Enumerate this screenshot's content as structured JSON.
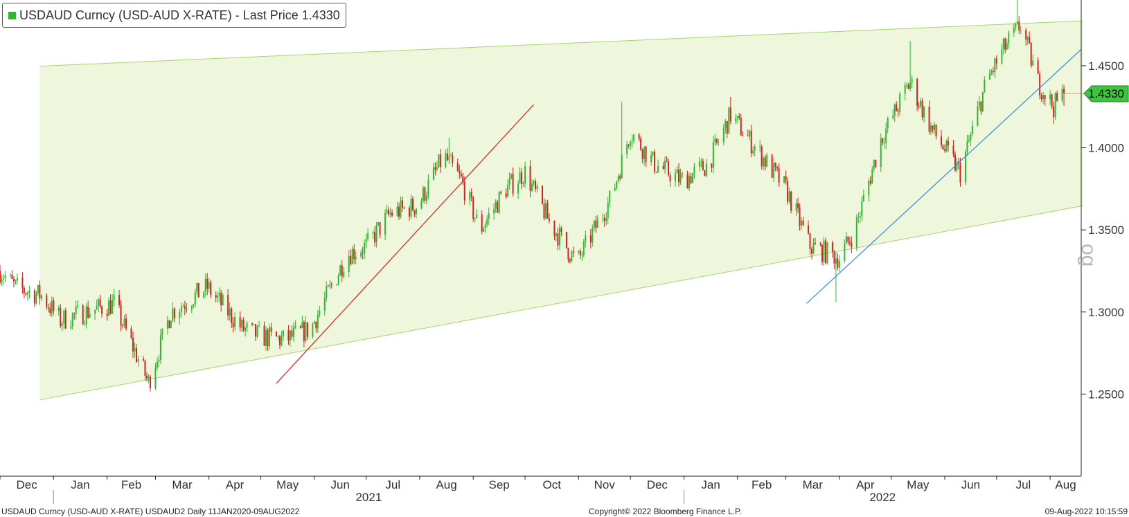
{
  "legend": {
    "label": "USDAUD Curncy (USD-AUD X-RATE) - Last Price 1.4330",
    "swatch_color": "#2db82d"
  },
  "last_price_tag": {
    "value": "1.4330",
    "color": "#3cc63c"
  },
  "watermark": "og",
  "footer": {
    "left": "USDAUD Curncy (USD-AUD X-RATE) USDAUD2  Daily 11JAN2020-09AUG2022",
    "center": "Copyright© 2022 Bloomberg Finance L.P.",
    "right": "09-Aug-2022 10:15:59"
  },
  "chart_data": {
    "type": "candlestick",
    "title": "USDAUD Curncy (USD-AUD X-RATE) - Last Price 1.4330",
    "y_ticks": [
      "1.2500",
      "1.3000",
      "1.3500",
      "1.4000",
      "1.4500"
    ],
    "y_tick_values": [
      1.25,
      1.3,
      1.35,
      1.4,
      1.45
    ],
    "ylim": [
      1.2,
      1.49
    ],
    "y_axis_side": "right",
    "x_month_labels": [
      "Dec",
      "Jan",
      "Feb",
      "Mar",
      "Apr",
      "May",
      "Jun",
      "Jul",
      "Aug",
      "Sep",
      "Oct",
      "Nov",
      "Dec",
      "Jan",
      "Feb",
      "Mar",
      "Apr",
      "May",
      "Jun",
      "Jul",
      "Aug"
    ],
    "x_year_labels": [
      "2021",
      "2022"
    ],
    "x_range": [
      "2020-12-01",
      "2022-08-19"
    ],
    "last_price": 1.433,
    "up_color": "#2db82d",
    "down_color": "#d42020",
    "price_path": [
      {
        "date": "2020-12-01",
        "value": 1.325
      },
      {
        "date": "2020-12-10",
        "value": 1.315
      },
      {
        "date": "2020-12-25",
        "value": 1.31
      },
      {
        "date": "2021-01-05",
        "value": 1.295
      },
      {
        "date": "2021-01-20",
        "value": 1.3
      },
      {
        "date": "2021-02-05",
        "value": 1.305
      },
      {
        "date": "2021-02-25",
        "value": 1.257
      },
      {
        "date": "2021-03-10",
        "value": 1.3
      },
      {
        "date": "2021-03-31",
        "value": 1.315
      },
      {
        "date": "2021-04-20",
        "value": 1.29
      },
      {
        "date": "2021-05-01",
        "value": 1.285
      },
      {
        "date": "2021-05-15",
        "value": 1.283
      },
      {
        "date": "2021-05-30",
        "value": 1.29
      },
      {
        "date": "2021-06-20",
        "value": 1.335
      },
      {
        "date": "2021-07-01",
        "value": 1.34
      },
      {
        "date": "2021-07-15",
        "value": 1.36
      },
      {
        "date": "2021-07-31",
        "value": 1.365
      },
      {
        "date": "2021-08-15",
        "value": 1.395
      },
      {
        "date": "2021-08-25",
        "value": 1.38
      },
      {
        "date": "2021-09-05",
        "value": 1.35
      },
      {
        "date": "2021-09-20",
        "value": 1.375
      },
      {
        "date": "2021-10-01",
        "value": 1.385
      },
      {
        "date": "2021-10-15",
        "value": 1.355
      },
      {
        "date": "2021-10-31",
        "value": 1.33
      },
      {
        "date": "2021-11-20",
        "value": 1.37
      },
      {
        "date": "2021-12-01",
        "value": 1.41
      },
      {
        "date": "2021-12-15",
        "value": 1.39
      },
      {
        "date": "2021-12-31",
        "value": 1.38
      },
      {
        "date": "2022-01-15",
        "value": 1.39
      },
      {
        "date": "2022-01-28",
        "value": 1.42
      },
      {
        "date": "2022-02-15",
        "value": 1.395
      },
      {
        "date": "2022-03-01",
        "value": 1.375
      },
      {
        "date": "2022-03-15",
        "value": 1.34
      },
      {
        "date": "2022-04-01",
        "value": 1.333
      },
      {
        "date": "2022-04-10",
        "value": 1.35
      },
      {
        "date": "2022-04-25",
        "value": 1.405
      },
      {
        "date": "2022-05-12",
        "value": 1.44
      },
      {
        "date": "2022-05-25",
        "value": 1.41
      },
      {
        "date": "2022-06-10",
        "value": 1.385
      },
      {
        "date": "2022-06-25",
        "value": 1.44
      },
      {
        "date": "2022-07-05",
        "value": 1.46
      },
      {
        "date": "2022-07-15",
        "value": 1.475
      },
      {
        "date": "2022-07-25",
        "value": 1.44
      },
      {
        "date": "2022-08-03",
        "value": 1.425
      },
      {
        "date": "2022-08-09",
        "value": 1.433
      }
    ],
    "spikes": [
      {
        "date": "2021-08-18",
        "high": 1.406
      },
      {
        "date": "2021-11-26",
        "high": 1.428
      },
      {
        "date": "2022-01-28",
        "high": 1.431
      },
      {
        "date": "2022-03-30",
        "low": 1.306
      },
      {
        "date": "2022-05-12",
        "high": 1.465
      },
      {
        "date": "2022-07-13",
        "high": 1.493
      }
    ],
    "channel": {
      "fill": "#eef6dc",
      "edge_color": "#a6d66a",
      "upper": [
        {
          "date": "2020-12-24",
          "value": 1.4497
        },
        {
          "date": "2022-08-20",
          "value": 1.4773
        }
      ],
      "lower": [
        {
          "date": "2020-12-24",
          "value": 1.2465
        },
        {
          "date": "2022-08-20",
          "value": 1.3647
        }
      ]
    },
    "trendlines": [
      {
        "name": "",
        "color": "#e02a2a",
        "points": [
          {
            "date": "2021-05-10",
            "value": 1.2565
          },
          {
            "date": "2021-10-06",
            "value": 1.4263
          }
        ]
      },
      {
        "name": "",
        "color": "#3d8fe6",
        "points": [
          {
            "date": "2022-03-13",
            "value": 1.3052
          },
          {
            "date": "2022-08-19",
            "value": 1.4599
          }
        ]
      }
    ],
    "grid": false,
    "legend_position": "top-left"
  }
}
